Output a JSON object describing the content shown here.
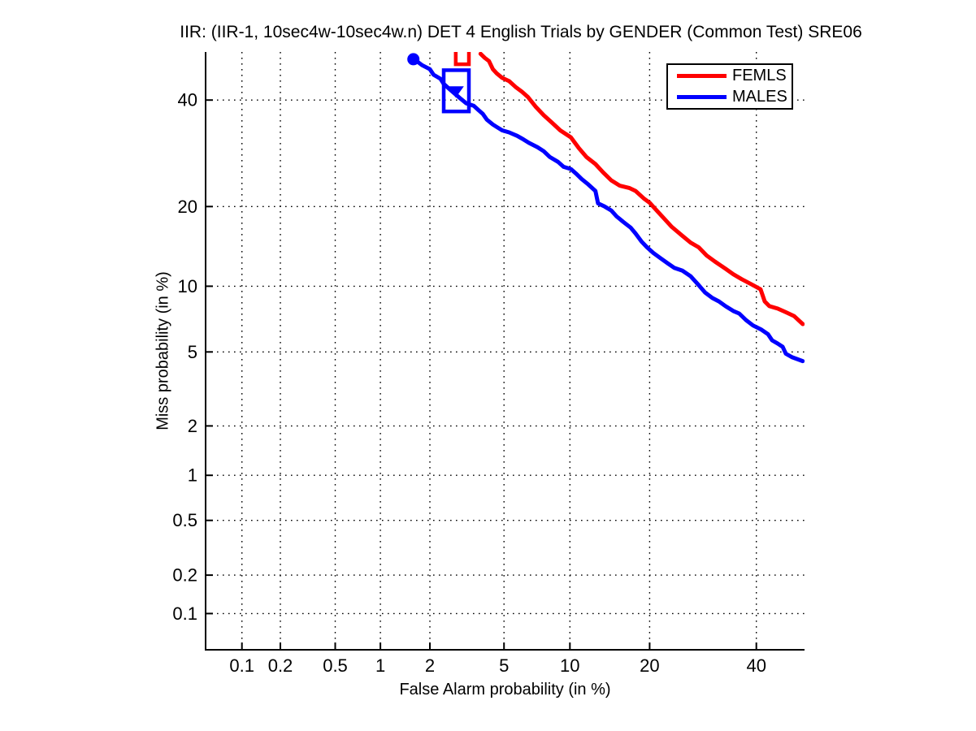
{
  "title": "IIR: (IIR-1, 10sec4w-10sec4w.n) DET 4 English Trials by GENDER (Common Test) SRE06",
  "chart_data": {
    "type": "line",
    "chart_kind": "DET curve (normal-deviate axes)",
    "title": "IIR: (IIR-1, 10sec4w-10sec4w.n) DET 4 English Trials by GENDER (Common Test) SRE06",
    "xlabel": "False Alarm probability (in %)",
    "ylabel": "Miss probability (in %)",
    "scale": "probit",
    "grid": "dotted",
    "xlim": [
      0.05,
      50.5
    ],
    "ylim": [
      0.05,
      50.5
    ],
    "x_ticks": [
      0.1,
      0.2,
      0.5,
      1,
      2,
      5,
      10,
      20,
      40
    ],
    "x_tick_labels": [
      "0.1",
      "0.2",
      "0.5",
      "1",
      "2",
      "5",
      "10",
      "20",
      "40"
    ],
    "y_ticks": [
      0.1,
      0.2,
      0.5,
      1,
      2,
      5,
      10,
      20,
      40
    ],
    "y_tick_labels": [
      "0.1",
      "0.2",
      "0.5",
      "1",
      "2",
      "5",
      "10",
      "20",
      "40"
    ],
    "legend": {
      "position": "upper right",
      "entries": [
        {
          "label": "FEMLS",
          "color": "#ff0000"
        },
        {
          "label": "MALES",
          "color": "#0000ff"
        }
      ]
    },
    "series": [
      {
        "name": "FEMLS",
        "color": "#ff0000",
        "points": [
          [
            3.8,
            50.1
          ],
          [
            4.0,
            49.2
          ],
          [
            4.2,
            48.5
          ],
          [
            4.4,
            46.7
          ],
          [
            4.6,
            45.8
          ],
          [
            4.9,
            44.8
          ],
          [
            5.3,
            44.1
          ],
          [
            5.7,
            42.8
          ],
          [
            6.1,
            41.8
          ],
          [
            6.5,
            40.7
          ],
          [
            7.1,
            38.5
          ],
          [
            7.7,
            36.8
          ],
          [
            8.4,
            35.2
          ],
          [
            9.1,
            33.7
          ],
          [
            10.1,
            32.3
          ],
          [
            10.9,
            30.2
          ],
          [
            11.7,
            28.5
          ],
          [
            12.7,
            27.2
          ],
          [
            13.6,
            25.7
          ],
          [
            14.6,
            24.3
          ],
          [
            15.7,
            23.4
          ],
          [
            17.0,
            23.0
          ],
          [
            17.9,
            22.5
          ],
          [
            19.1,
            21.3
          ],
          [
            20.0,
            20.6
          ],
          [
            21.3,
            19.2
          ],
          [
            22.2,
            18.3
          ],
          [
            23.6,
            17.0
          ],
          [
            25.4,
            15.8
          ],
          [
            26.9,
            14.9
          ],
          [
            28.4,
            14.3
          ],
          [
            29.9,
            13.3
          ],
          [
            31.5,
            12.6
          ],
          [
            33.6,
            11.8
          ],
          [
            35.2,
            11.2
          ],
          [
            36.9,
            10.7
          ],
          [
            39.3,
            10.1
          ],
          [
            40.9,
            9.7
          ],
          [
            41.8,
            8.6
          ],
          [
            42.8,
            8.2
          ],
          [
            44.6,
            8.0
          ],
          [
            46.4,
            7.7
          ],
          [
            48.2,
            7.4
          ],
          [
            50.1,
            6.8
          ]
        ]
      },
      {
        "name": "MALES",
        "color": "#0000ff",
        "points": [
          [
            1.6,
            48.9
          ],
          [
            1.7,
            48.3
          ],
          [
            1.8,
            47.6
          ],
          [
            2.0,
            46.7
          ],
          [
            2.1,
            45.5
          ],
          [
            2.3,
            44.6
          ],
          [
            2.4,
            43.5
          ],
          [
            2.6,
            42.3
          ],
          [
            2.8,
            41.2
          ],
          [
            3.0,
            40.2
          ],
          [
            3.2,
            39.3
          ],
          [
            3.5,
            38.8
          ],
          [
            3.7,
            37.9
          ],
          [
            3.9,
            37.1
          ],
          [
            4.1,
            35.9
          ],
          [
            4.4,
            34.9
          ],
          [
            4.6,
            34.4
          ],
          [
            4.9,
            33.7
          ],
          [
            5.3,
            33.3
          ],
          [
            5.8,
            32.6
          ],
          [
            6.2,
            31.9
          ],
          [
            6.6,
            31.2
          ],
          [
            7.2,
            30.4
          ],
          [
            7.7,
            29.6
          ],
          [
            8.2,
            28.5
          ],
          [
            8.9,
            27.6
          ],
          [
            9.4,
            26.7
          ],
          [
            10.1,
            26.3
          ],
          [
            10.6,
            25.5
          ],
          [
            11.2,
            24.5
          ],
          [
            11.9,
            23.6
          ],
          [
            12.7,
            22.5
          ],
          [
            13.0,
            20.5
          ],
          [
            13.8,
            20.0
          ],
          [
            14.6,
            19.4
          ],
          [
            15.3,
            18.5
          ],
          [
            16.2,
            17.7
          ],
          [
            17.2,
            16.9
          ],
          [
            17.9,
            16.1
          ],
          [
            18.8,
            15.0
          ],
          [
            19.6,
            14.3
          ],
          [
            20.6,
            13.6
          ],
          [
            21.7,
            13.0
          ],
          [
            22.9,
            12.4
          ],
          [
            24.0,
            11.9
          ],
          [
            25.4,
            11.6
          ],
          [
            26.9,
            11.0
          ],
          [
            28.4,
            10.1
          ],
          [
            29.6,
            9.4
          ],
          [
            31.0,
            8.9
          ],
          [
            32.3,
            8.6
          ],
          [
            33.6,
            8.2
          ],
          [
            35.2,
            7.8
          ],
          [
            36.4,
            7.6
          ],
          [
            37.8,
            7.1
          ],
          [
            39.3,
            6.7
          ],
          [
            41.1,
            6.4
          ],
          [
            42.5,
            6.1
          ],
          [
            43.4,
            5.7
          ],
          [
            44.6,
            5.5
          ],
          [
            45.7,
            5.3
          ],
          [
            46.4,
            4.9
          ],
          [
            47.8,
            4.7
          ],
          [
            50.1,
            4.5
          ]
        ]
      }
    ],
    "markers": [
      {
        "name": "males-start-dot",
        "shape": "circle",
        "color": "#0000ff",
        "fa": 1.6,
        "miss": 48.9
      },
      {
        "name": "males-dcf-box",
        "shape": "rect",
        "color": "#0000ff",
        "fa_range": [
          2.4,
          3.3
        ],
        "miss_range": [
          37.6,
          46.5
        ]
      },
      {
        "name": "males-mindcf-triangle",
        "shape": "triangle-down",
        "color": "#0000ff",
        "fa": 2.8,
        "miss": 41.9
      },
      {
        "name": "femls-dcf-box",
        "shape": "rect",
        "color": "#ff0000",
        "fa_range": [
          2.8,
          3.3
        ],
        "miss_range": [
          47.8,
          55.0
        ]
      }
    ]
  }
}
